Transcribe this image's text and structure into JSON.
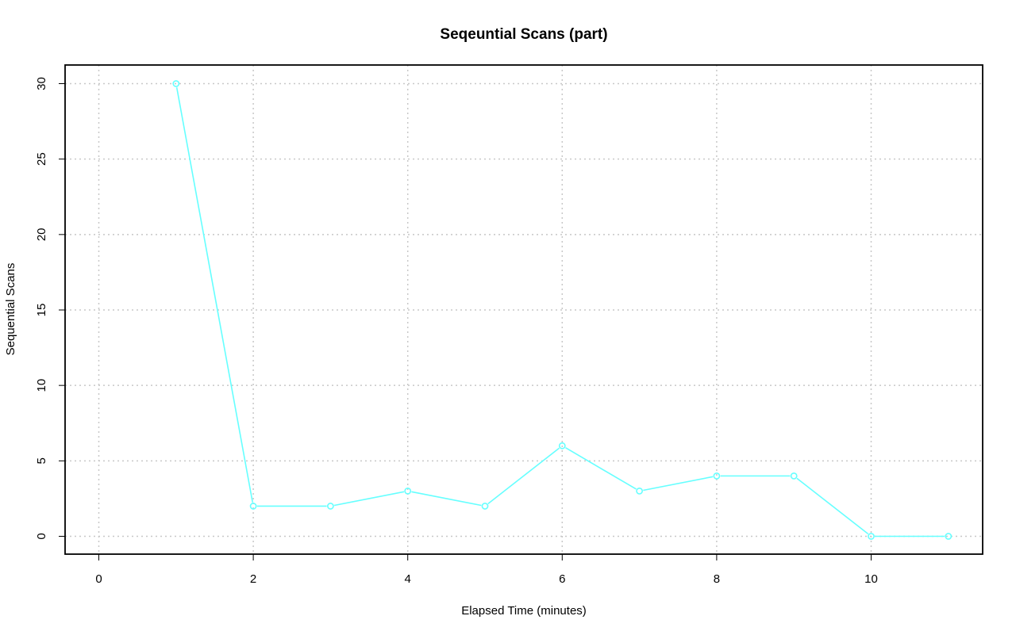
{
  "chart_data": {
    "type": "line",
    "title": "Seqeuntial Scans (part)",
    "xlabel": "Elapsed Time (minutes)",
    "ylabel": "Sequential Scans",
    "xlim": [
      0,
      11
    ],
    "ylim": [
      0,
      30
    ],
    "x_ticks": [
      0,
      2,
      4,
      6,
      8,
      10
    ],
    "y_ticks": [
      0,
      5,
      10,
      15,
      20,
      25,
      30
    ],
    "grid": true,
    "legend": "none",
    "series": [
      {
        "color": "#66ffff",
        "marker": "open-circle",
        "x": [
          1,
          2,
          3,
          4,
          5,
          6,
          7,
          8,
          9,
          10,
          11
        ],
        "y": [
          30,
          2,
          2,
          3,
          2,
          6,
          3,
          4,
          4,
          0,
          0
        ]
      }
    ]
  }
}
